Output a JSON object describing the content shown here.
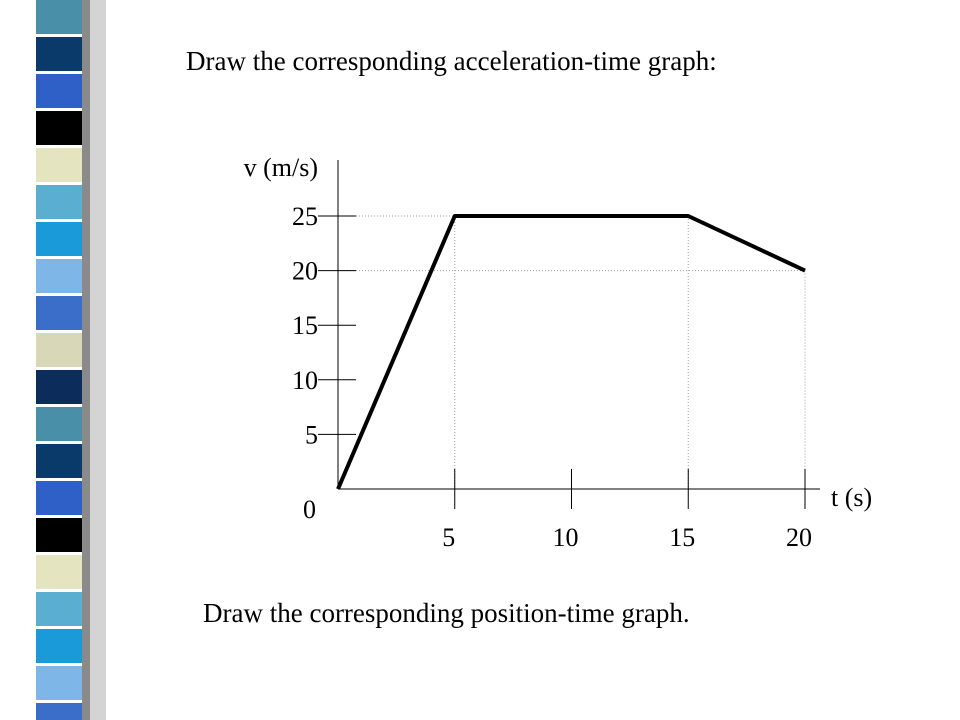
{
  "slide": {
    "prompt_top": "Draw the corresponding acceleration-time graph:",
    "prompt_bottom": "Draw the corresponding position-time graph.",
    "stripe_colors": [
      "#4a8fa8",
      "#0a3a6a",
      "#2e60c8",
      "#000000",
      "#e4e4c0",
      "#5aaed0",
      "#1a9ad8",
      "#7eb6e8",
      "#3a6ec8",
      "#d8d8b8",
      "#0c2c5c"
    ]
  },
  "chart_data": {
    "type": "line",
    "title": "",
    "xlabel": "t (s)",
    "ylabel": "v (m/s)",
    "x_ticks": [
      5,
      10,
      15,
      20
    ],
    "y_ticks": [
      0,
      5,
      10,
      15,
      20,
      25
    ],
    "xlim": [
      0,
      20
    ],
    "ylim": [
      0,
      28
    ],
    "grid": false,
    "series": [
      {
        "x": [
          0,
          5,
          15,
          20
        ],
        "y": [
          0,
          25,
          25,
          20
        ]
      }
    ],
    "guide_lines": [
      {
        "x": 5,
        "y": 25
      },
      {
        "x": 15,
        "y": 25
      },
      {
        "x": 20,
        "y": 20
      }
    ],
    "colors": {
      "line": "#000000",
      "guide": "#a0a0a0"
    }
  }
}
